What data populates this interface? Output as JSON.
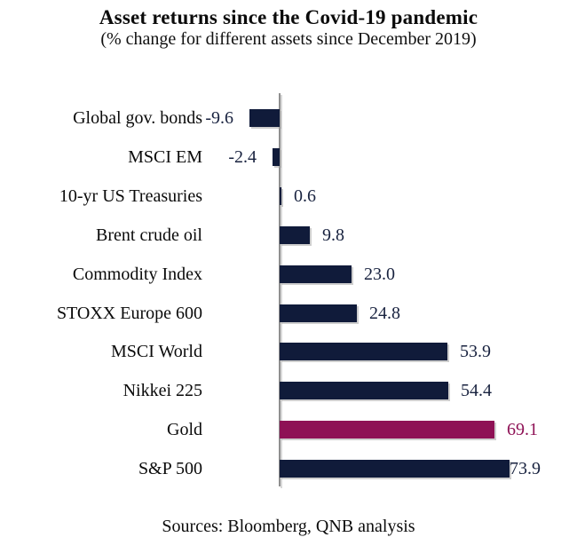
{
  "header": {
    "title": "Asset returns since the Covid-19 pandemic",
    "subtitle": "(% change for different assets since December 2019)"
  },
  "footer": {
    "source": "Sources: Bloomberg, QNB analysis"
  },
  "chart_data": {
    "type": "bar",
    "orientation": "horizontal",
    "title": "Asset returns since the Covid-19 pandemic",
    "subtitle": "(% change for different assets since December 2019)",
    "unit": "%",
    "value_axis_visible": false,
    "gridlines": false,
    "legend": "none",
    "xlim": [
      -15,
      80
    ],
    "categories": [
      "Global gov. bonds",
      "MSCI EM",
      "10-yr US Treasuries",
      "Brent crude oil",
      "Commodity Index",
      "STOXX Europe 600",
      "MSCI World",
      "Nikkei 225",
      "Gold",
      "S&P 500"
    ],
    "values": [
      -9.6,
      -2.4,
      0.6,
      9.8,
      23.0,
      24.8,
      53.9,
      54.4,
      69.1,
      73.9
    ],
    "bars": [
      {
        "label": "Global gov. bonds",
        "value": -9.6,
        "display": "-9.6",
        "highlight": false
      },
      {
        "label": "MSCI EM",
        "value": -2.4,
        "display": "-2.4",
        "highlight": false
      },
      {
        "label": "10-yr US Treasuries",
        "value": 0.6,
        "display": "0.6",
        "highlight": false
      },
      {
        "label": "Brent crude oil",
        "value": 9.8,
        "display": "9.8",
        "highlight": false
      },
      {
        "label": "Commodity Index",
        "value": 23.0,
        "display": "23.0",
        "highlight": false
      },
      {
        "label": "STOXX Europe 600",
        "value": 24.8,
        "display": "24.8",
        "highlight": false
      },
      {
        "label": "MSCI World",
        "value": 53.9,
        "display": "53.9",
        "highlight": false
      },
      {
        "label": "Nikkei 225",
        "value": 54.4,
        "display": "54.4",
        "highlight": false
      },
      {
        "label": "Gold",
        "value": 69.1,
        "display": "69.1",
        "highlight": true
      },
      {
        "label": "S&P 500",
        "value": 73.9,
        "display": "73.9",
        "highlight": false
      }
    ],
    "highlighted_category": "Gold",
    "colors": {
      "bar": "#101b3a",
      "highlight_bar": "#8e1155",
      "value_text": "#18223f",
      "highlight_value_text": "#8e1155",
      "axis_line": "#8f8f8f",
      "category_text": "#0a0a0a"
    },
    "source": "Sources: Bloomberg, QNB analysis"
  }
}
